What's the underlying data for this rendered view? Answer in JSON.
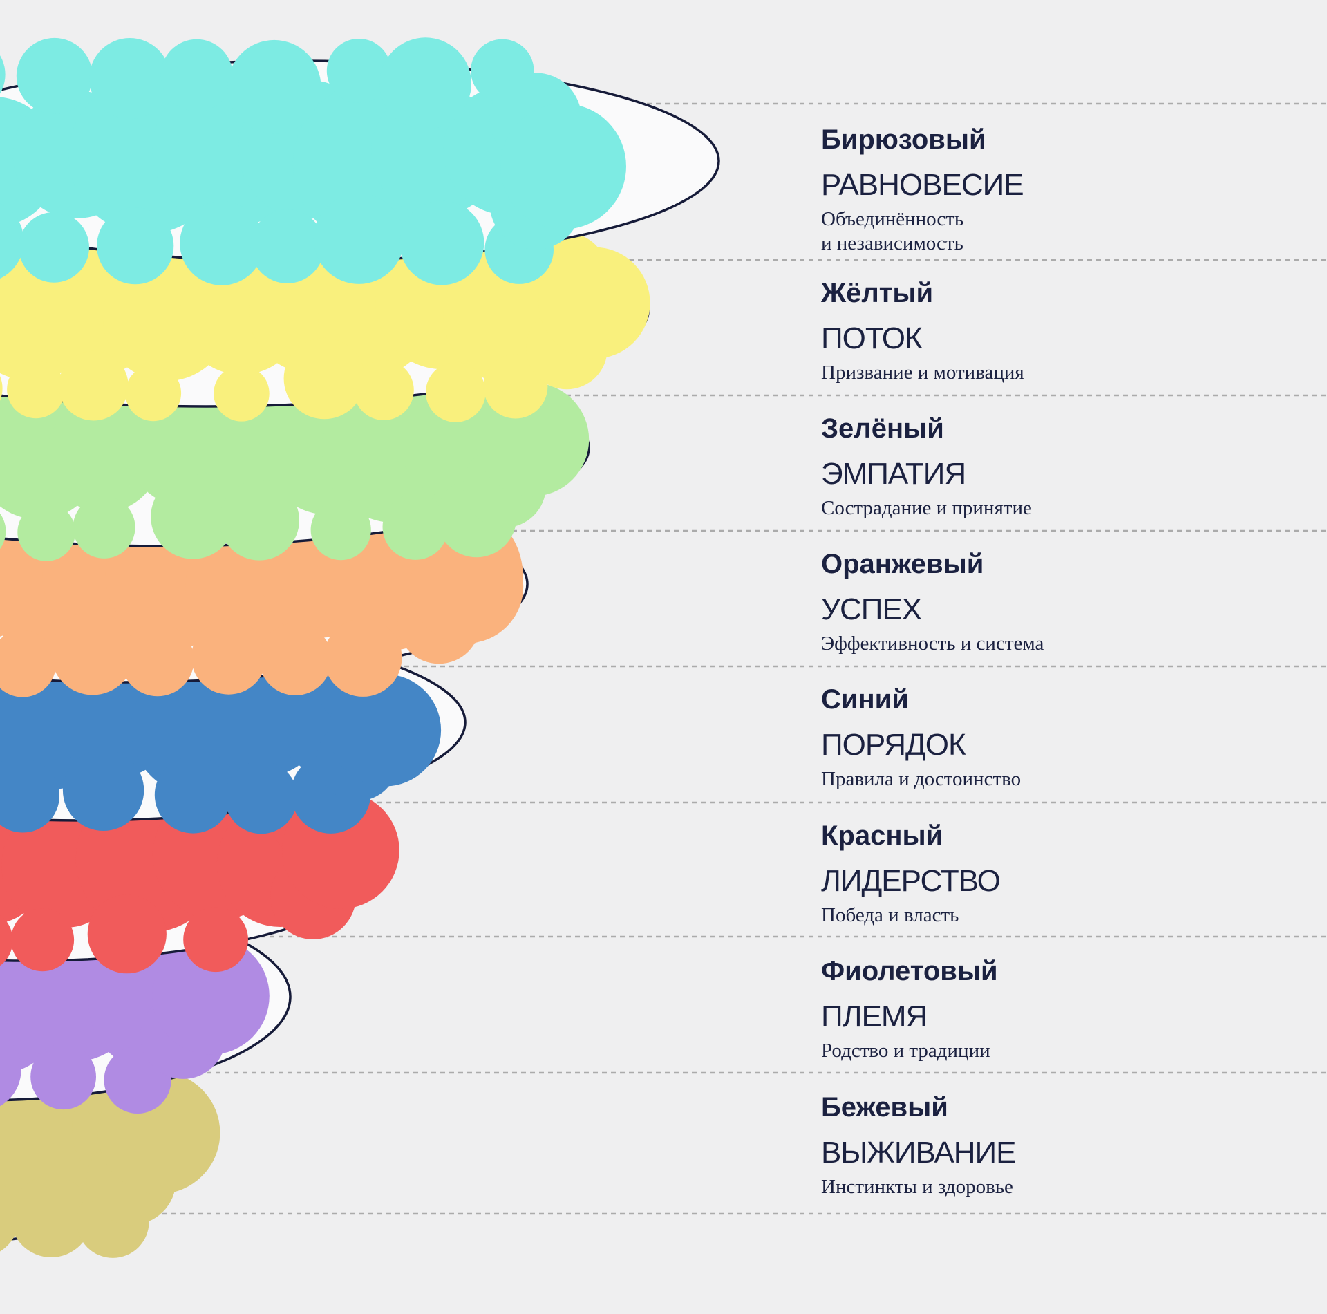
{
  "colors": {
    "background": "#EFEFF0",
    "plate_fill": "#FAFAFB",
    "plate_outline": "#161B39",
    "text": "#1B2140",
    "divider": "#ABABAB"
  },
  "levels": [
    {
      "id": "turquoise",
      "color_name": "Бирюзовый",
      "theme": "РАВНОВЕСИЕ",
      "description": "Объединённость\nи независимость",
      "blob_color": "#7DEBE3"
    },
    {
      "id": "yellow",
      "color_name": "Жёлтый",
      "theme": "ПОТОК",
      "description": "Призвание и мотивация",
      "blob_color": "#F9F07D"
    },
    {
      "id": "green",
      "color_name": "Зелёный",
      "theme": "ЭМПАТИЯ",
      "description": "Сострадание и принятие",
      "blob_color": "#B3EBA0"
    },
    {
      "id": "orange",
      "color_name": "Оранжевый",
      "theme": "УСПЕХ",
      "description": "Эффективность и система",
      "blob_color": "#FAB27D"
    },
    {
      "id": "blue",
      "color_name": "Синий",
      "theme": "ПОРЯДОК",
      "description": "Правила и достоинство",
      "blob_color": "#4486C6"
    },
    {
      "id": "red",
      "color_name": "Красный",
      "theme": "ЛИДЕРСТВО",
      "description": "Победа и власть",
      "blob_color": "#F15B5B"
    },
    {
      "id": "purple",
      "color_name": "Фиолетовый",
      "theme": "ПЛЕМЯ",
      "description": "Родство и традиции",
      "blob_color": "#B08BE3"
    },
    {
      "id": "beige",
      "color_name": "Бежевый",
      "theme": "ВЫЖИВАНИЕ",
      "description": "Инстинкты и здоровье",
      "blob_color": "#D9CC7D"
    }
  ]
}
